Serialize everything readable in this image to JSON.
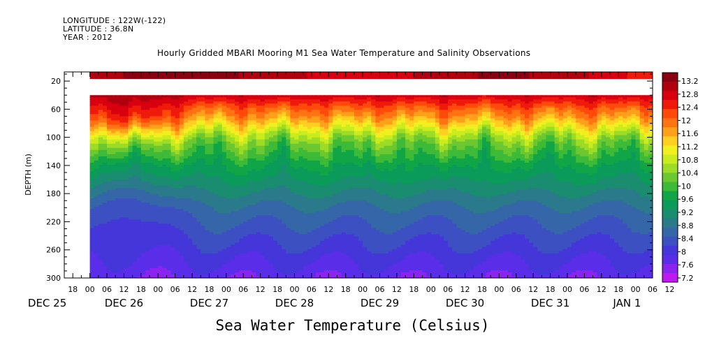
{
  "header": {
    "longitude": "LONGITUDE : 122W(-122)",
    "latitude": "LATITUDE : 36.8N",
    "year": "YEAR : 2012"
  },
  "chart_data": {
    "type": "heatmap",
    "title": "Hourly Gridded MBARI Mooring M1 Sea Water Temperature and Salinity Observations",
    "variable_label": "Sea Water Temperature (Celsius)",
    "ylabel": "DEPTH (m)",
    "ylim": [
      300,
      7
    ],
    "yticks": [
      20,
      60,
      100,
      140,
      180,
      220,
      260,
      300
    ],
    "x_range_hours": [
      -9,
      198
    ],
    "data_start_hour": 0,
    "x_hour_ticks": [
      "18",
      "00",
      "06",
      "12",
      "18",
      "00",
      "06",
      "12",
      "18",
      "00",
      "06",
      "12",
      "18",
      "00",
      "06",
      "12",
      "18",
      "00",
      "06",
      "12",
      "18",
      "00",
      "06",
      "12",
      "18",
      "00",
      "06",
      "12",
      "18",
      "00",
      "06",
      "12",
      "18",
      "00",
      "06",
      "12"
    ],
    "x_day_labels": [
      {
        "label": "DEC 25",
        "hour": -15
      },
      {
        "label": "DEC 26",
        "hour": 12
      },
      {
        "label": "DEC 27",
        "hour": 42
      },
      {
        "label": "DEC 28",
        "hour": 72
      },
      {
        "label": "DEC 29",
        "hour": 102
      },
      {
        "label": "DEC 30",
        "hour": 132
      },
      {
        "label": "DEC 31",
        "hour": 162
      },
      {
        "label": "JAN  1",
        "hour": 189
      }
    ],
    "colorbar_levels": [
      13.2,
      12.8,
      12.4,
      12,
      11.6,
      11.2,
      10.8,
      10.4,
      10,
      9.6,
      9.2,
      8.8,
      8.4,
      8,
      7.6,
      7.2
    ],
    "colors": [
      "#8b0010",
      "#b0000d",
      "#d8000f",
      "#f01a0a",
      "#ff4a0a",
      "#ff7410",
      "#ffa01a",
      "#ffd020",
      "#f0f020",
      "#c8ec1e",
      "#9cdc26",
      "#6cc830",
      "#3cba38",
      "#10a648",
      "#0a9a5a",
      "#1a8c70",
      "#2a7a8c",
      "#3466a8",
      "#3c50c2",
      "#4436d8",
      "#5a2ee8",
      "#8a24ee",
      "#c018f0"
    ],
    "surface_band": {
      "depth_range": [
        7,
        17
      ],
      "value": 13.0
    },
    "data_gap_depth_range": [
      17,
      40
    ],
    "profile": {
      "depths": [
        40,
        50,
        60,
        70,
        80,
        90,
        100,
        110,
        120,
        140,
        160,
        180,
        200,
        220,
        240,
        260,
        280,
        300
      ],
      "values": [
        12.8,
        12.4,
        12.0,
        11.7,
        11.3,
        10.9,
        10.5,
        10.2,
        10.0,
        9.6,
        9.3,
        9.0,
        8.7,
        8.5,
        8.3,
        8.1,
        7.9,
        7.7
      ]
    }
  }
}
